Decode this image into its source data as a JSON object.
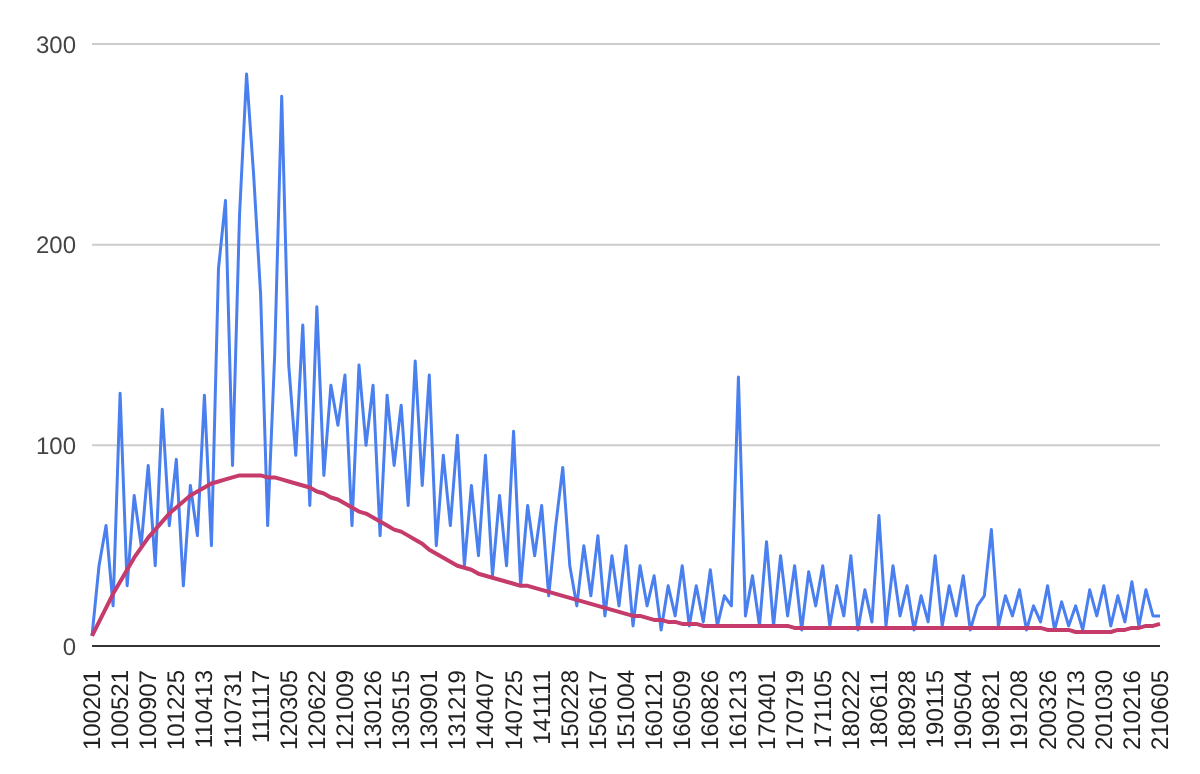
{
  "chart_data": {
    "type": "line",
    "categories": [
      "100201",
      null,
      null,
      null,
      "100521",
      null,
      null,
      null,
      "100907",
      null,
      null,
      null,
      "101225",
      null,
      null,
      null,
      "110413",
      null,
      null,
      null,
      "110731",
      null,
      null,
      null,
      "111117",
      null,
      null,
      null,
      "120305",
      null,
      null,
      null,
      "120622",
      null,
      null,
      null,
      "121009",
      null,
      null,
      null,
      "130126",
      null,
      null,
      null,
      "130515",
      null,
      null,
      null,
      "130901",
      null,
      null,
      null,
      "131219",
      null,
      null,
      null,
      "140407",
      null,
      null,
      null,
      "140725",
      null,
      null,
      null,
      "141111",
      null,
      null,
      null,
      "150228",
      null,
      null,
      null,
      "150617",
      null,
      null,
      null,
      "151004",
      null,
      null,
      null,
      "160121",
      null,
      null,
      null,
      "160509",
      null,
      null,
      null,
      "160826",
      null,
      null,
      null,
      "161213",
      null,
      null,
      null,
      "170401",
      null,
      null,
      null,
      "170719",
      null,
      null,
      null,
      "171105",
      null,
      null,
      null,
      "180222",
      null,
      null,
      null,
      "180611",
      null,
      null,
      null,
      "180928",
      null,
      null,
      null,
      "190115",
      null,
      null,
      null,
      "190504",
      null,
      null,
      null,
      "190821",
      null,
      null,
      null,
      "191208",
      null,
      null,
      null,
      "200326",
      null,
      null,
      null,
      "200713",
      null,
      null,
      null,
      "201030",
      null,
      null,
      null,
      "210216",
      null,
      null,
      null,
      "210605"
    ],
    "series": [
      {
        "color": "#4a7ff0",
        "values": [
          5,
          40,
          60,
          20,
          126,
          30,
          75,
          50,
          90,
          40,
          118,
          60,
          93,
          30,
          80,
          55,
          125,
          50,
          188,
          222,
          90,
          215,
          285,
          235,
          175,
          60,
          145,
          274,
          140,
          95,
          160,
          70,
          169,
          85,
          130,
          110,
          135,
          60,
          140,
          100,
          130,
          55,
          125,
          90,
          120,
          70,
          142,
          80,
          135,
          50,
          95,
          60,
          105,
          40,
          80,
          45,
          95,
          35,
          75,
          40,
          107,
          30,
          70,
          45,
          70,
          25,
          60,
          89,
          40,
          20,
          50,
          25,
          55,
          15,
          45,
          20,
          50,
          10,
          40,
          20,
          35,
          8,
          30,
          15,
          40,
          10,
          30,
          12,
          38,
          10,
          25,
          20,
          134,
          15,
          35,
          10,
          52,
          10,
          45,
          15,
          40,
          8,
          37,
          20,
          40,
          10,
          30,
          15,
          45,
          8,
          28,
          12,
          65,
          10,
          40,
          15,
          30,
          8,
          25,
          12,
          45,
          10,
          30,
          15,
          35,
          8,
          20,
          25,
          58,
          10,
          25,
          15,
          28,
          8,
          20,
          12,
          30,
          8,
          22,
          10,
          20,
          8,
          28,
          15,
          30,
          10,
          25,
          12,
          32,
          10,
          28,
          15,
          15
        ]
      },
      {
        "color": "#c53b6b",
        "values": [
          5,
          12,
          19,
          26,
          32,
          38,
          44,
          49,
          54,
          58,
          62,
          66,
          69,
          72,
          75,
          77,
          79,
          81,
          82,
          83,
          84,
          85,
          85,
          85,
          85,
          84,
          84,
          83,
          82,
          81,
          80,
          79,
          77,
          76,
          74,
          73,
          71,
          69,
          67,
          66,
          64,
          62,
          60,
          58,
          57,
          55,
          53,
          51,
          48,
          46,
          44,
          42,
          40,
          39,
          38,
          36,
          35,
          34,
          33,
          32,
          31,
          30,
          30,
          29,
          28,
          27,
          26,
          25,
          24,
          23,
          22,
          21,
          20,
          19,
          18,
          17,
          16,
          15,
          15,
          14,
          13,
          13,
          12,
          12,
          11,
          11,
          11,
          10,
          10,
          10,
          10,
          10,
          10,
          10,
          10,
          10,
          10,
          10,
          10,
          10,
          9,
          9,
          9,
          9,
          9,
          9,
          9,
          9,
          9,
          9,
          9,
          9,
          9,
          9,
          9,
          9,
          9,
          9,
          9,
          9,
          9,
          9,
          9,
          9,
          9,
          9,
          9,
          9,
          9,
          9,
          9,
          9,
          9,
          9,
          9,
          9,
          8,
          8,
          8,
          8,
          7,
          7,
          7,
          7,
          7,
          7,
          8,
          8,
          9,
          9,
          10,
          10,
          11
        ]
      }
    ],
    "ylim": [
      0,
      300
    ],
    "yticks": [
      0,
      100,
      200,
      300
    ],
    "grid": "y",
    "marker": "none",
    "line_style": "solid"
  }
}
